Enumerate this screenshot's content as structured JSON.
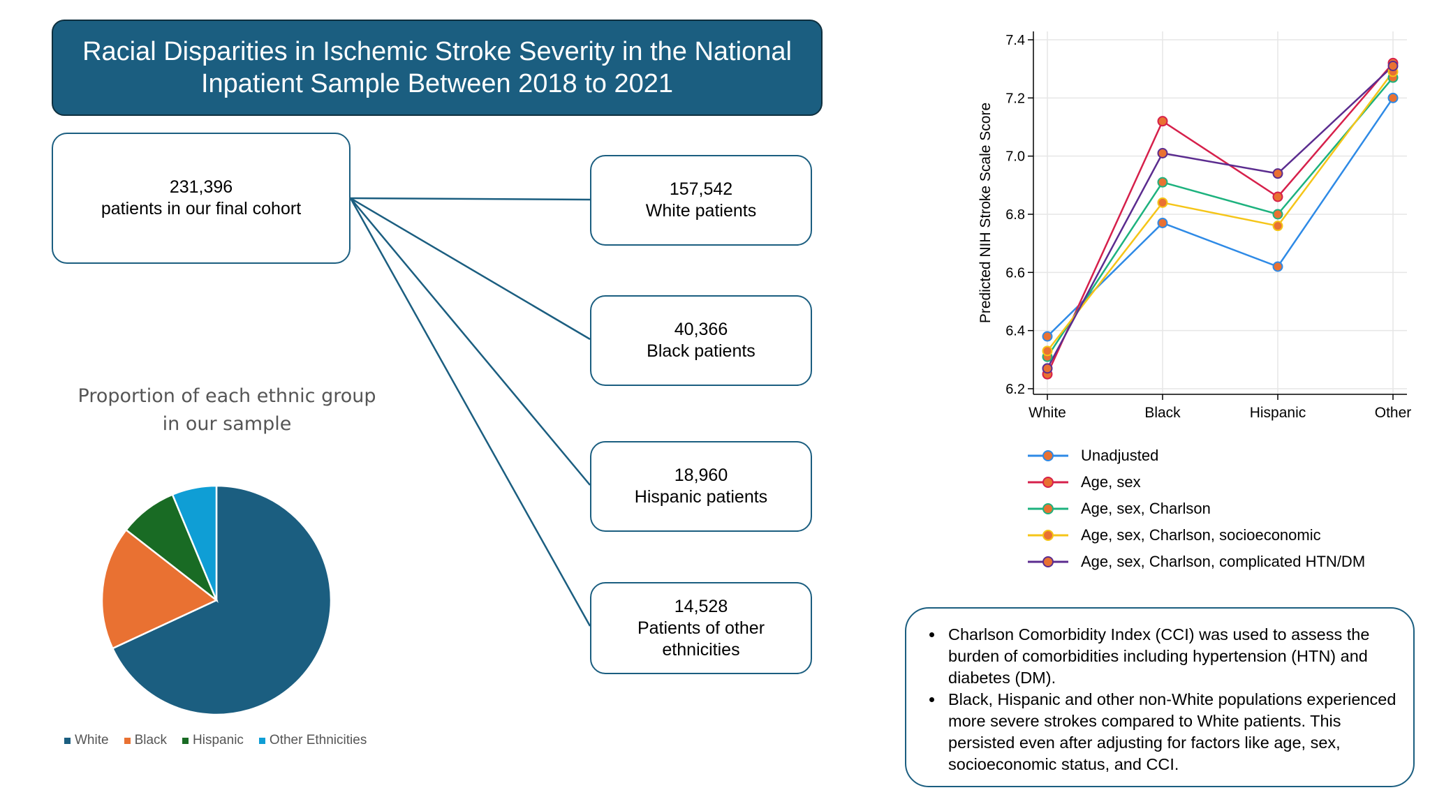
{
  "header": {
    "title_line1": "Racial Disparities in Ischemic Stroke Severity in the National",
    "title_line2": "Inpatient Sample Between 2018 to 2021"
  },
  "cohort": {
    "total": {
      "count": "231,396",
      "label": "patients in our final cohort"
    },
    "groups": [
      {
        "count": "157,542",
        "label": "White patients"
      },
      {
        "count": "40,366",
        "label": "Black patients"
      },
      {
        "count": "18,960",
        "label": "Hispanic patients"
      },
      {
        "count": "14,528",
        "label_line1": "Patients of other",
        "label_line2": "ethnicities"
      }
    ]
  },
  "pie": {
    "title_line1": "Proportion of each ethnic group",
    "title_line2": "in our sample"
  },
  "notes": [
    "Charlson Comorbidity Index (CCI) was used to assess the burden of comorbidities including hypertension (HTN) and diabetes (DM).",
    "Black, Hispanic and other non-White populations experienced more severe strokes compared to White patients. This persisted even after adjusting for factors like age, sex, socioeconomic status, and CCI."
  ],
  "chart_data": [
    {
      "type": "pie",
      "categories": [
        "White",
        "Black",
        "Hispanic",
        "Other Ethnicities"
      ],
      "values": [
        157542,
        40366,
        18960,
        14528
      ],
      "colors": [
        "#1b5e80",
        "#e97132",
        "#196b24",
        "#0f9ed5"
      ],
      "legend": "bottom"
    },
    {
      "type": "line",
      "categories": [
        "White",
        "Black",
        "Hispanic",
        "Other"
      ],
      "ylabel": "Predicted NIH Stroke Scale Score",
      "ylim": [
        6.2,
        7.4
      ],
      "yticks": [
        "6.2",
        "6.4",
        "6.6",
        "6.8",
        "7.0",
        "7.2",
        "7.4"
      ],
      "grid": true,
      "legend": "bottom",
      "marker_fill": "#e97132",
      "series": [
        {
          "name": "Unadjusted",
          "color": "#2e8ae6",
          "values": [
            6.38,
            6.77,
            6.62,
            7.2
          ]
        },
        {
          "name": "Age, sex",
          "color": "#d6204b",
          "values": [
            6.25,
            7.12,
            6.86,
            7.32
          ]
        },
        {
          "name": "Age, sex, Charlson",
          "color": "#1db27e",
          "values": [
            6.31,
            6.91,
            6.8,
            7.27
          ]
        },
        {
          "name": "Age, sex, Charlson, socioeconomic",
          "color": "#f5c518",
          "values": [
            6.33,
            6.84,
            6.76,
            7.29
          ]
        },
        {
          "name": "Age, sex, Charlson, complicated HTN/DM",
          "color": "#5b2c8f",
          "values": [
            6.27,
            7.01,
            6.94,
            7.31
          ]
        }
      ]
    }
  ]
}
